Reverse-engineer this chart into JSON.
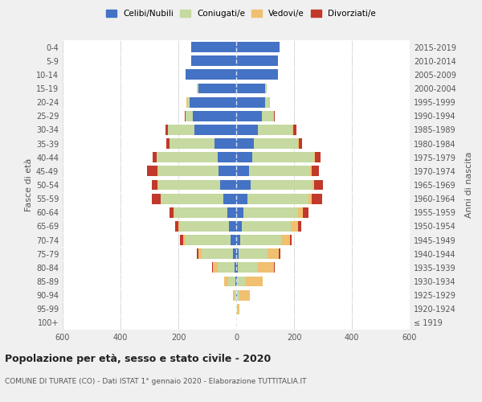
{
  "age_groups": [
    "100+",
    "95-99",
    "90-94",
    "85-89",
    "80-84",
    "75-79",
    "70-74",
    "65-69",
    "60-64",
    "55-59",
    "50-54",
    "45-49",
    "40-44",
    "35-39",
    "30-34",
    "25-29",
    "20-24",
    "15-19",
    "10-14",
    "5-9",
    "0-4"
  ],
  "birth_years": [
    "≤ 1919",
    "1920-1924",
    "1925-1929",
    "1930-1934",
    "1935-1939",
    "1940-1944",
    "1945-1949",
    "1950-1954",
    "1955-1959",
    "1960-1964",
    "1965-1969",
    "1970-1974",
    "1975-1979",
    "1980-1984",
    "1985-1989",
    "1990-1994",
    "1995-1999",
    "2000-2004",
    "2005-2009",
    "2010-2014",
    "2015-2019"
  ],
  "male": {
    "celibi": [
      0,
      0,
      1,
      2,
      5,
      10,
      20,
      25,
      30,
      45,
      55,
      60,
      65,
      75,
      145,
      150,
      160,
      130,
      175,
      155,
      155
    ],
    "coniugati": [
      0,
      1,
      5,
      25,
      60,
      110,
      155,
      170,
      185,
      215,
      215,
      210,
      210,
      155,
      90,
      25,
      10,
      5,
      0,
      0,
      0
    ],
    "vedovi": [
      0,
      0,
      5,
      15,
      15,
      10,
      8,
      5,
      3,
      2,
      2,
      2,
      1,
      1,
      1,
      1,
      1,
      0,
      0,
      0,
      0
    ],
    "divorziati": [
      0,
      0,
      0,
      0,
      3,
      5,
      12,
      10,
      12,
      30,
      20,
      35,
      12,
      10,
      8,
      2,
      1,
      0,
      0,
      0,
      0
    ]
  },
  "female": {
    "nubili": [
      0,
      1,
      2,
      3,
      5,
      8,
      15,
      20,
      25,
      40,
      50,
      45,
      55,
      60,
      75,
      90,
      100,
      100,
      145,
      145,
      150
    ],
    "coniugate": [
      0,
      2,
      10,
      30,
      70,
      100,
      140,
      170,
      190,
      210,
      215,
      210,
      215,
      155,
      120,
      40,
      15,
      5,
      0,
      0,
      0
    ],
    "vedove": [
      1,
      8,
      35,
      60,
      55,
      40,
      30,
      25,
      15,
      12,
      5,
      5,
      3,
      2,
      2,
      1,
      1,
      0,
      0,
      0,
      0
    ],
    "divorziate": [
      0,
      0,
      0,
      0,
      3,
      5,
      8,
      10,
      20,
      35,
      30,
      25,
      20,
      12,
      10,
      3,
      1,
      0,
      0,
      0,
      0
    ]
  },
  "colors": {
    "celibi_nubili": "#4472c4",
    "coniugati": "#c5d9a0",
    "vedovi": "#f0c070",
    "divorziati": "#c0392b"
  },
  "xlim": 600,
  "title": "Popolazione per età, sesso e stato civile - 2020",
  "subtitle": "COMUNE DI TURATE (CO) - Dati ISTAT 1° gennaio 2020 - Elaborazione TUTTITALIA.IT",
  "ylabel_left": "Fasce di età",
  "ylabel_right": "Anni di nascita",
  "background_color": "#f0f0f0",
  "plot_background": "#ffffff"
}
